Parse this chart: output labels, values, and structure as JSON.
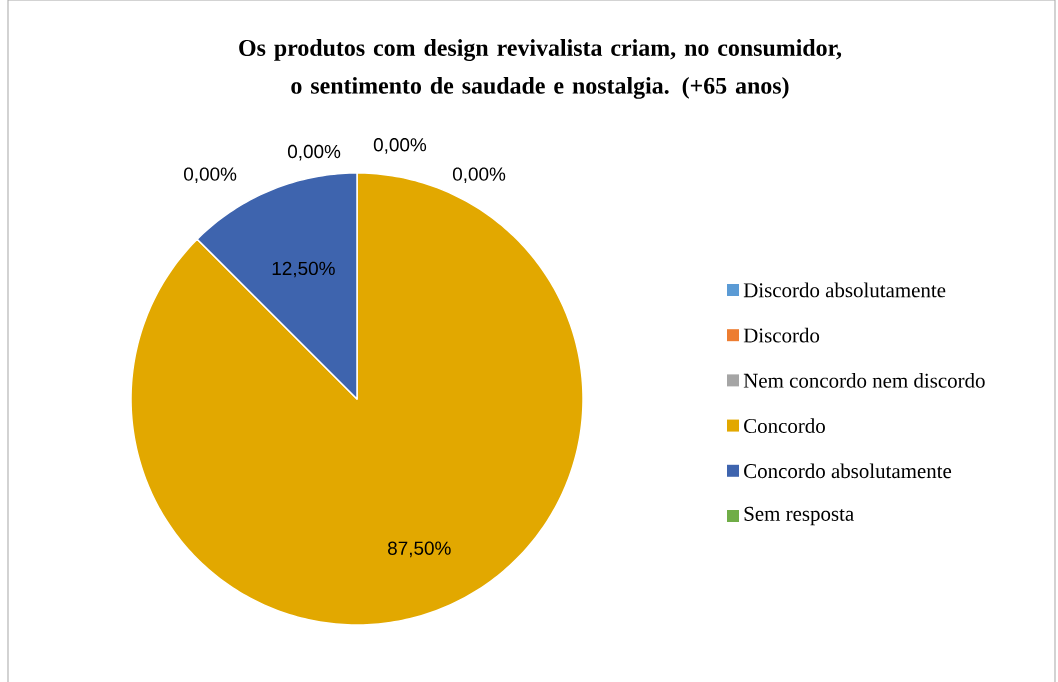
{
  "chart_data": {
    "type": "pie",
    "title": "Os produtos com design revivalista criam, no consumidor, o sentimento de saudade e nostalgia. (+65 anos)",
    "categories": [
      "Discordo absolutamente",
      "Discordo",
      "Nem concordo nem discordo",
      "Concordo",
      "Concordo absolutamente",
      "Sem resposta"
    ],
    "values": [
      0,
      0,
      0,
      87.5,
      12.5,
      0
    ],
    "colors": [
      "#5b9bd5",
      "#ed7d31",
      "#a5a5a5",
      "#e2a800",
      "#3e64ae",
      "#70ad47"
    ],
    "value_labels": [
      "0,00%",
      "0,00%",
      "0,00%",
      "87,50%",
      "12,50%",
      "0,00%"
    ],
    "legend": "right"
  }
}
